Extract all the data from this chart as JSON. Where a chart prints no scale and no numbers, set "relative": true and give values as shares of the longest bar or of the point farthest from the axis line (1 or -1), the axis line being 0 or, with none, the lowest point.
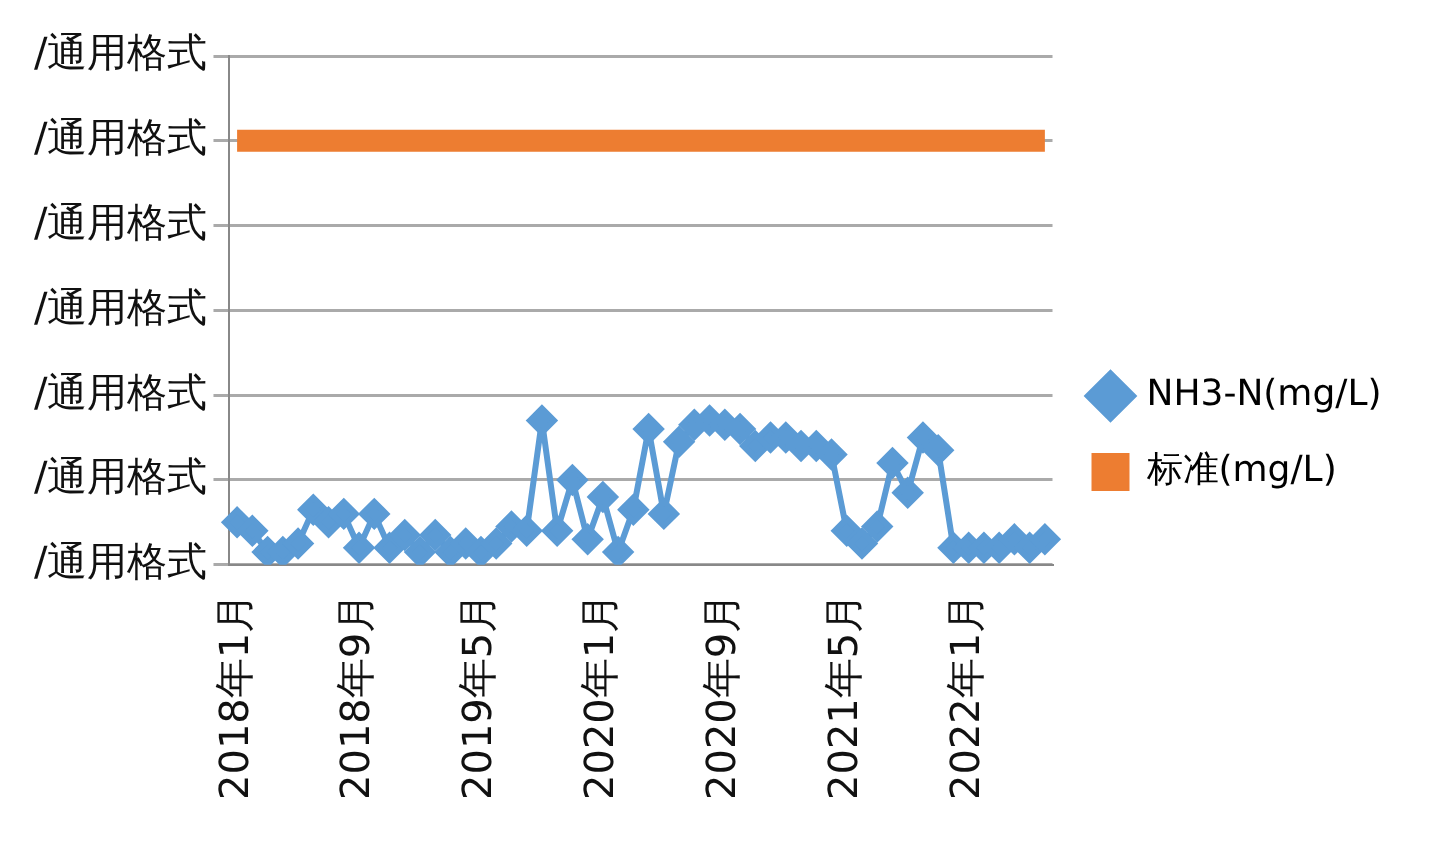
{
  "chart_data": {
    "type": "line",
    "relative": true,
    "categories": [
      "2018年1月",
      null,
      null,
      null,
      null,
      null,
      null,
      null,
      "2018年9月",
      null,
      null,
      null,
      null,
      null,
      null,
      null,
      "2019年5月",
      null,
      null,
      null,
      null,
      null,
      null,
      null,
      "2020年1月",
      null,
      null,
      null,
      null,
      null,
      null,
      null,
      "2020年9月",
      null,
      null,
      null,
      null,
      null,
      null,
      null,
      "2021年5月",
      null,
      null,
      null,
      null,
      null,
      null,
      null,
      "2022年1月",
      null,
      null,
      null,
      null,
      null
    ],
    "series": [
      {
        "name": "NH3-N(mg/L)",
        "color": "#5b9bd5",
        "marker": "diamond",
        "values": [
          0.1,
          0.08,
          0.03,
          0.03,
          0.05,
          0.13,
          0.1,
          0.12,
          0.04,
          0.12,
          0.04,
          0.07,
          0.03,
          0.07,
          0.03,
          0.05,
          0.03,
          0.05,
          0.09,
          0.08,
          0.34,
          0.08,
          0.2,
          0.06,
          0.16,
          0.03,
          0.13,
          0.32,
          0.12,
          0.29,
          0.33,
          0.34,
          0.33,
          0.32,
          0.28,
          0.3,
          0.3,
          0.28,
          0.28,
          0.26,
          0.08,
          0.05,
          0.09,
          0.24,
          0.17,
          0.3,
          0.27,
          0.04,
          0.04,
          0.04,
          0.04,
          0.06,
          0.04,
          0.06
        ]
      },
      {
        "name": "标准(mg/L)",
        "color": "#ed7d31",
        "values": [
          1,
          1,
          1,
          1,
          1,
          1,
          1,
          1,
          1,
          1,
          1,
          1,
          1,
          1,
          1,
          1,
          1,
          1,
          1,
          1,
          1,
          1,
          1,
          1,
          1,
          1,
          1,
          1,
          1,
          1,
          1,
          1,
          1,
          1,
          1,
          1,
          1,
          1,
          1,
          1,
          1,
          1,
          1,
          1,
          1,
          1,
          1,
          1,
          1,
          1,
          1,
          1,
          1,
          1
        ]
      }
    ],
    "annotations": [
      "/通用格式",
      "/通用格式",
      "/通用格式",
      "/通用格式",
      "/通用格式",
      "/通用格式",
      "/通用格式"
    ],
    "grid": "y",
    "legend": "right"
  }
}
